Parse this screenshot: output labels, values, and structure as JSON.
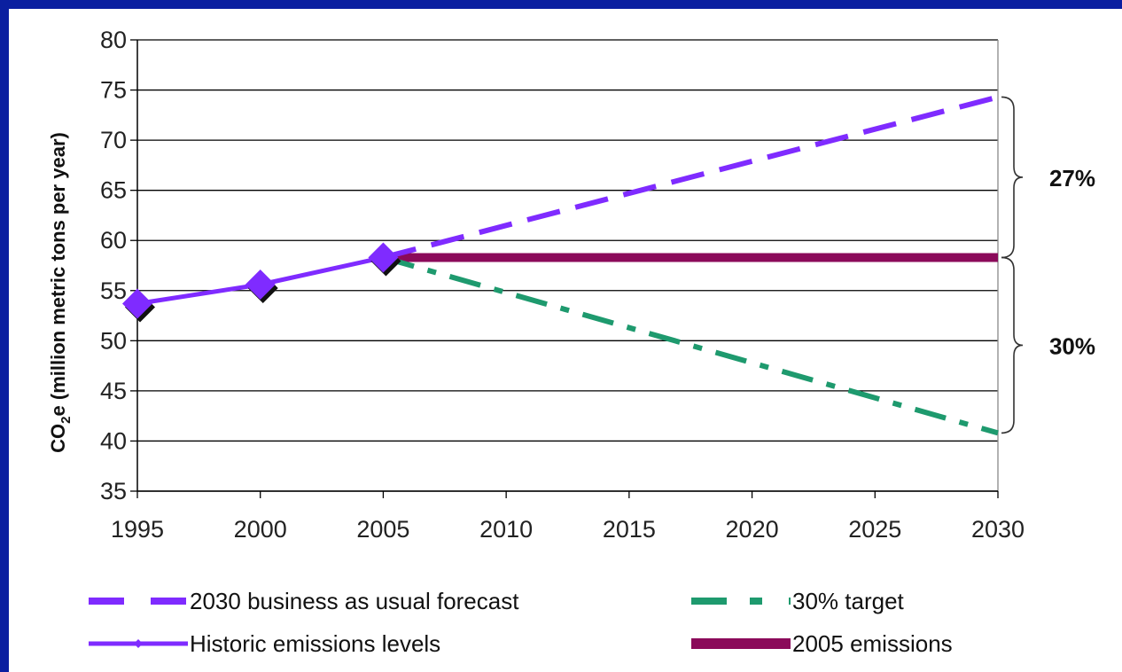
{
  "chart_data": {
    "type": "line",
    "ylabel_main": "CO",
    "ylabel_sub": "2",
    "ylabel_rest": "e (million metric tons per year)",
    "xlabel": "",
    "ylim": [
      35,
      80
    ],
    "yticks": [
      35,
      40,
      45,
      50,
      55,
      60,
      65,
      70,
      75,
      80
    ],
    "xticks": [
      1995,
      2000,
      2005,
      2010,
      2015,
      2020,
      2025,
      2030
    ],
    "xlim": [
      1995,
      2030
    ],
    "grid": true,
    "legend_position": "bottom",
    "series": [
      {
        "name": "2030 business as usual forecast",
        "color": "#7f2bff",
        "style": "dashed",
        "x": [
          2005,
          2030
        ],
        "y": [
          58.3,
          74.3
        ]
      },
      {
        "name": "30% target",
        "color": "#1e9a6e",
        "style": "dash-dot",
        "x": [
          2005,
          2030
        ],
        "y": [
          58.3,
          40.8
        ]
      },
      {
        "name": "Historic emissions levels",
        "color": "#7f2bff",
        "style": "solid-markers",
        "x": [
          1995,
          2000,
          2005
        ],
        "y": [
          53.7,
          55.6,
          58.3
        ]
      },
      {
        "name": "2005 emissions",
        "color": "#8b0a5a",
        "style": "solid",
        "x": [
          2005,
          2030
        ],
        "y": [
          58.3,
          58.3
        ]
      }
    ],
    "annotations": [
      {
        "text": "27%",
        "from": 58.3,
        "to": 74.3
      },
      {
        "text": "30%",
        "from": 40.8,
        "to": 58.3
      }
    ],
    "legend_order": [
      0,
      1,
      2,
      3
    ]
  }
}
